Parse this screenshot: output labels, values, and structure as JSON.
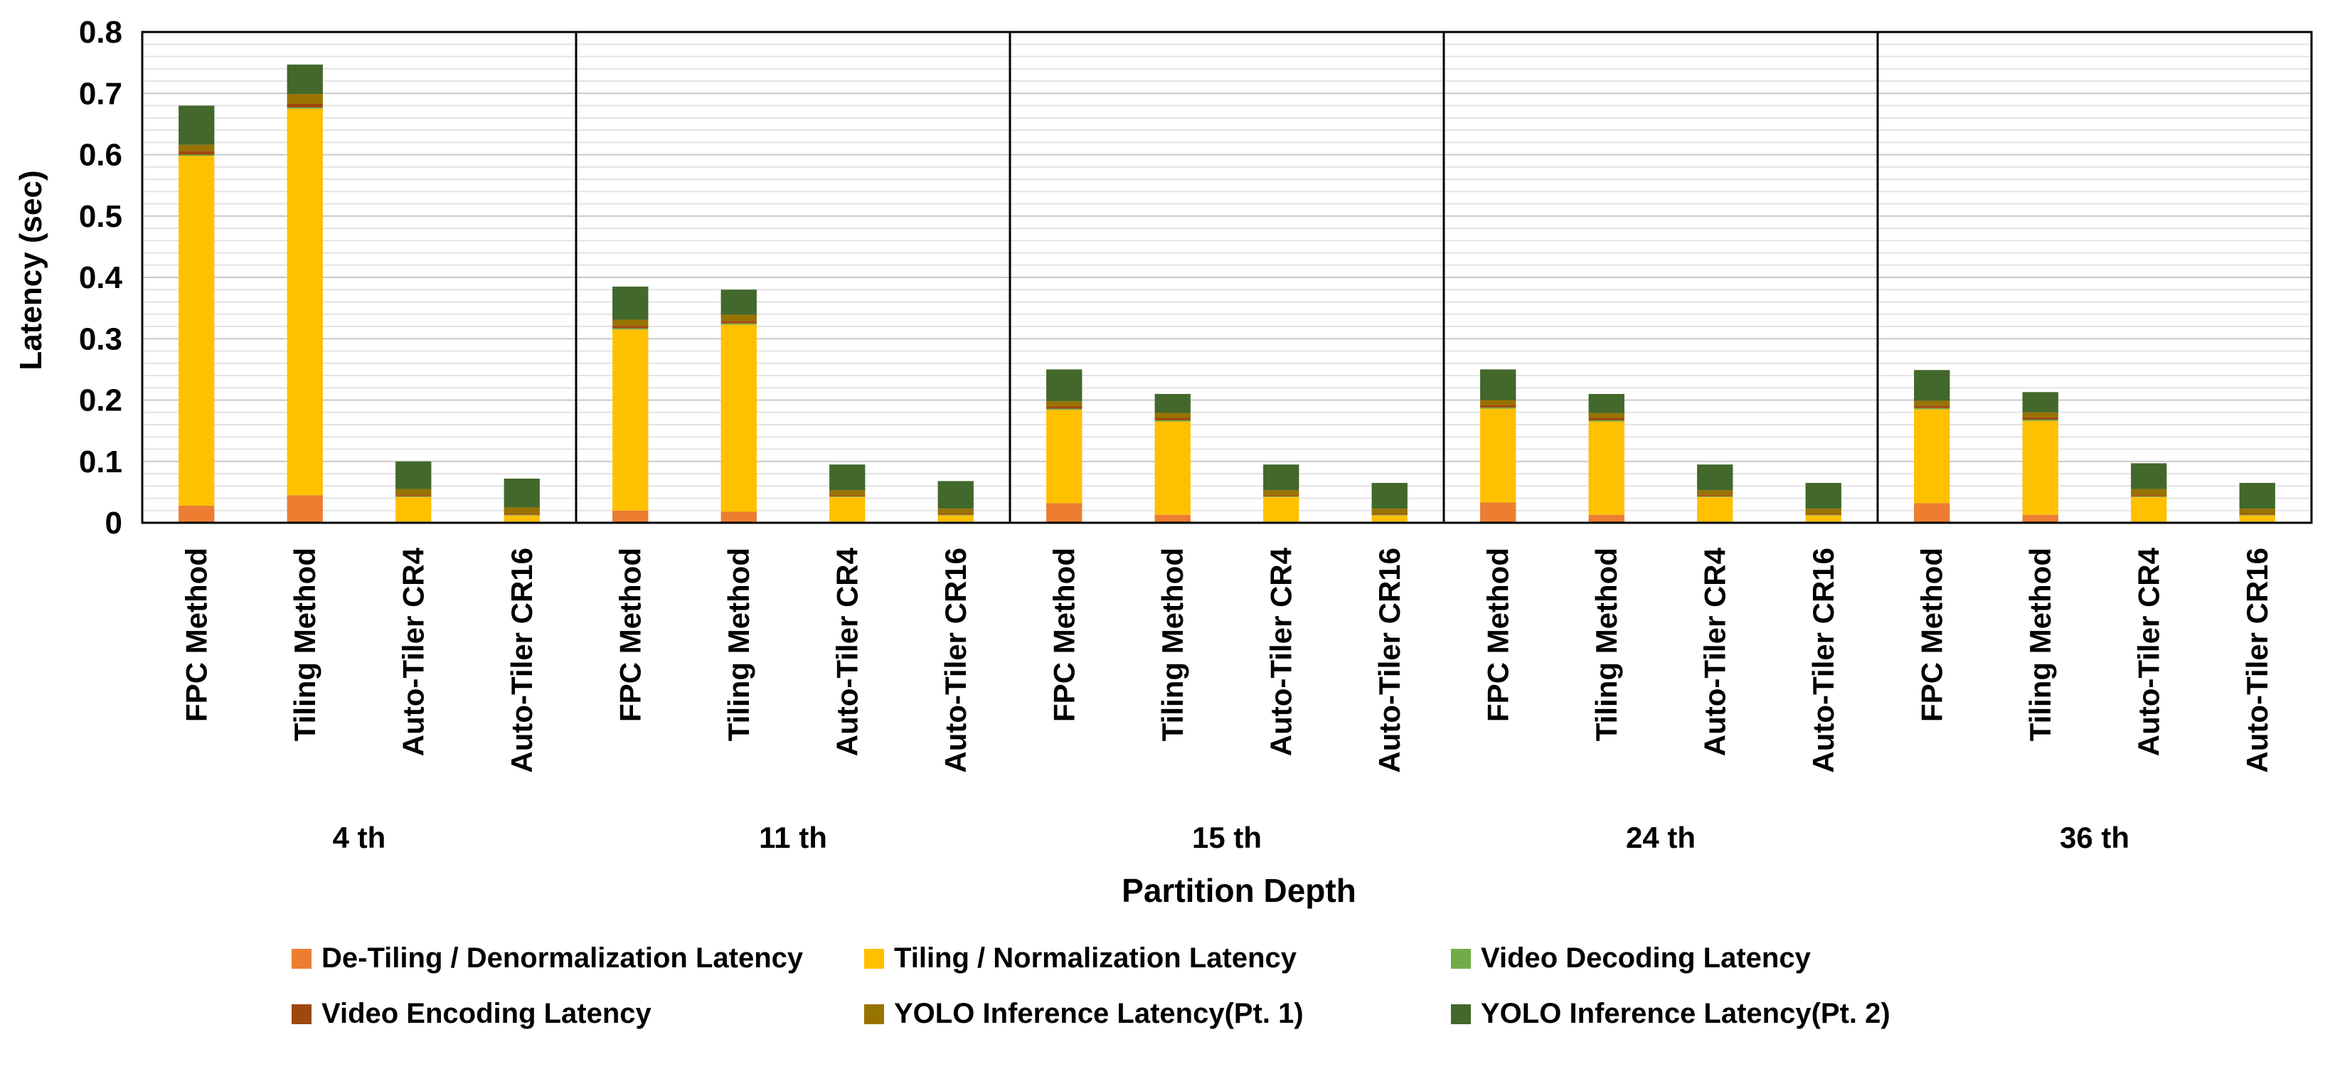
{
  "chart_data": {
    "type": "bar",
    "stacked": true,
    "title": "",
    "xlabel": "Partition Depth",
    "ylabel": "Latency (sec)",
    "ylim": [
      0,
      0.8
    ],
    "yticks": [
      "0",
      "0.1",
      "0.2",
      "0.3",
      "0.4",
      "0.5",
      "0.6",
      "0.7",
      "0.8"
    ],
    "grid": true,
    "legend_position": "bottom",
    "groups": [
      "4 th",
      "11 th",
      "15 th",
      "24 th",
      "36 th"
    ],
    "categories": [
      "FPC Method",
      "Tiling Method",
      "Auto-Tiler CR4",
      "Auto-Tiler CR16"
    ],
    "series": [
      {
        "name": "De-Tiling / Denormalization Latency",
        "color": "#ED7D31",
        "values": [
          [
            0.028,
            0.045,
            0.002,
            0.002
          ],
          [
            0.02,
            0.018,
            0.002,
            0.002
          ],
          [
            0.032,
            0.013,
            0.002,
            0.002
          ],
          [
            0.033,
            0.013,
            0.002,
            0.002
          ],
          [
            0.032,
            0.013,
            0.002,
            0.002
          ]
        ]
      },
      {
        "name": "Tiling / Normalization Latency",
        "color": "#FFC000",
        "values": [
          [
            0.57,
            0.63,
            0.04,
            0.01
          ],
          [
            0.295,
            0.305,
            0.04,
            0.01
          ],
          [
            0.152,
            0.152,
            0.04,
            0.01
          ],
          [
            0.153,
            0.152,
            0.04,
            0.01
          ],
          [
            0.153,
            0.153,
            0.04,
            0.01
          ]
        ]
      },
      {
        "name": "Video Decoding Latency",
        "color": "#70AD47",
        "values": [
          [
            0.002,
            0.002,
            0.001,
            0.001
          ],
          [
            0.002,
            0.002,
            0.001,
            0.001
          ],
          [
            0.002,
            0.002,
            0.001,
            0.001
          ],
          [
            0.002,
            0.002,
            0.001,
            0.001
          ],
          [
            0.002,
            0.002,
            0.001,
            0.001
          ]
        ]
      },
      {
        "name": "Video Encoding Latency",
        "color": "#9E480E",
        "values": [
          [
            0.006,
            0.006,
            0.002,
            0.002
          ],
          [
            0.004,
            0.004,
            0.002,
            0.002
          ],
          [
            0.004,
            0.004,
            0.002,
            0.002
          ],
          [
            0.004,
            0.004,
            0.002,
            0.002
          ],
          [
            0.004,
            0.004,
            0.002,
            0.002
          ]
        ]
      },
      {
        "name": "YOLO Inference Latency(Pt. 1)",
        "color": "#997300",
        "values": [
          [
            0.01,
            0.016,
            0.01,
            0.01
          ],
          [
            0.01,
            0.01,
            0.008,
            0.008
          ],
          [
            0.008,
            0.008,
            0.008,
            0.008
          ],
          [
            0.008,
            0.008,
            0.008,
            0.008
          ],
          [
            0.008,
            0.008,
            0.01,
            0.008
          ]
        ]
      },
      {
        "name": "YOLO Inference Latency(Pt. 2)",
        "color": "#43682B",
        "values": [
          [
            0.064,
            0.048,
            0.045,
            0.047
          ],
          [
            0.054,
            0.041,
            0.042,
            0.045
          ],
          [
            0.052,
            0.031,
            0.042,
            0.042
          ],
          [
            0.05,
            0.031,
            0.042,
            0.042
          ],
          [
            0.05,
            0.033,
            0.042,
            0.042
          ]
        ]
      }
    ]
  }
}
